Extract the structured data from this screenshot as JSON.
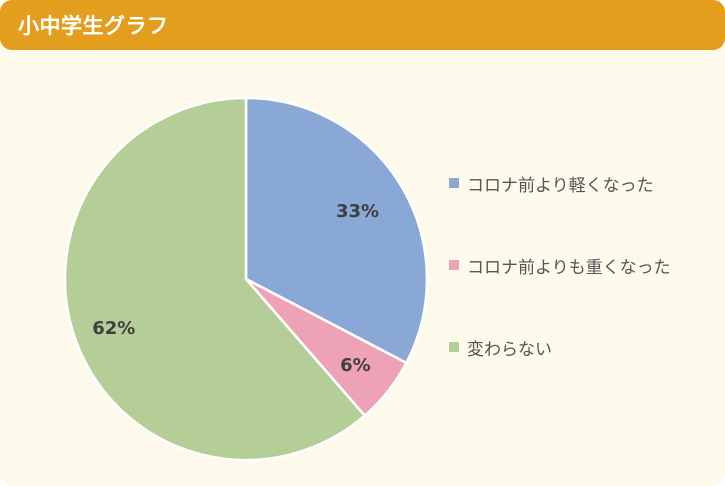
{
  "header": {
    "title": "小中学生グラフ"
  },
  "colors": {
    "header_bg": "#e29e1c",
    "panel_bg": "#fdfaec"
  },
  "chart_data": {
    "type": "pie",
    "title": "小中学生グラフ",
    "categories": [
      "コロナ前より軽くなった",
      "コロナ前よりも重くなった",
      "変わらない"
    ],
    "values": [
      33,
      6,
      62
    ],
    "labels": [
      "33%",
      "6%",
      "62%"
    ],
    "colors": [
      "#8aa8d5",
      "#eea2b5",
      "#b5ce98"
    ],
    "legend_position": "right"
  }
}
